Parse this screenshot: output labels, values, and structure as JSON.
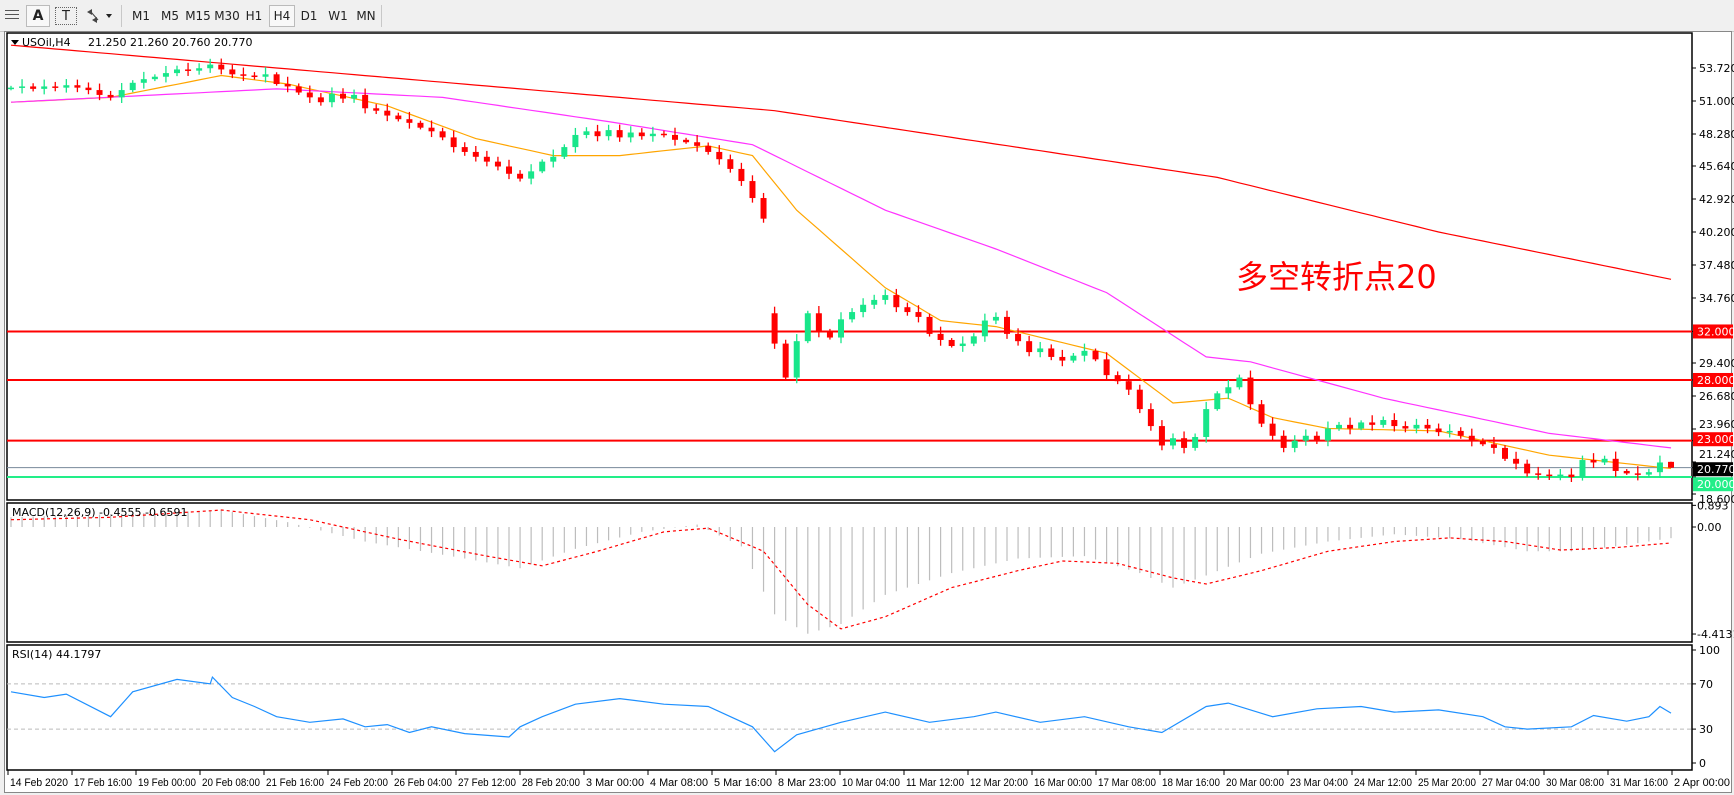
{
  "toolbar": {
    "buttons": [
      "A",
      "T"
    ],
    "timeframes": [
      "M1",
      "M5",
      "M15",
      "M30",
      "H1",
      "H4",
      "D1",
      "W1",
      "MN"
    ],
    "active_timeframe": "H4"
  },
  "header": {
    "symbol": "USOil,H4",
    "ohlc": "21.250 21.260 20.760 20.770"
  },
  "annotation": "多空转折点20",
  "colors": {
    "bull": "#18e68a",
    "bear": "#ff0000",
    "ma_fast": "#ffa500",
    "ma_mid": "#ff33ff",
    "ma_slow": "#ff0000",
    "level_red": "#ff0000",
    "level_green": "#22ee88",
    "rsi": "#1e90ff",
    "macd_hist": "#bdbdbd",
    "macd_signal": "#ff0000"
  },
  "chart_data": [
    {
      "type": "candlestick",
      "title": "USOil,H4",
      "ylim": [
        18.0,
        56.5
      ],
      "price_ticks": [
        "53.720",
        "51.000",
        "48.280",
        "45.640",
        "42.920",
        "40.200",
        "37.480",
        "34.760",
        "29.400",
        "26.680",
        "23.960",
        "21.240",
        "18.600"
      ],
      "closes": [
        52.1,
        52.2,
        52.0,
        52.2,
        52.1,
        52.3,
        52.1,
        51.9,
        51.5,
        51.3,
        51.9,
        52.5,
        52.8,
        53.0,
        53.3,
        53.6,
        53.5,
        53.7,
        54.0,
        53.6,
        53.2,
        53.1,
        53.0,
        53.2,
        52.4,
        52.2,
        51.7,
        51.3,
        50.9,
        51.6,
        51.2,
        51.5,
        50.4,
        50.2,
        49.8,
        49.5,
        49.2,
        48.8,
        48.5,
        48.0,
        47.2,
        46.8,
        46.4,
        46.0,
        45.6,
        45.0,
        44.6,
        45.2,
        46.0,
        46.4,
        47.2,
        48.2,
        48.5,
        48.1,
        48.6,
        48.0,
        48.4,
        48.1,
        48.3,
        48.2,
        47.8,
        47.6,
        47.3,
        46.8,
        46.2,
        45.4,
        44.4,
        43.0,
        41.3,
        31.0,
        28.2,
        31.2,
        33.5,
        32.0,
        31.5,
        33.0,
        33.6,
        34.2,
        34.6,
        35.0,
        34.0,
        33.6,
        33.2,
        31.8,
        31.3,
        30.8,
        31.0,
        31.6,
        32.9,
        33.2,
        31.8,
        31.2,
        30.3,
        30.6,
        29.9,
        29.6,
        30.0,
        30.4,
        29.7,
        28.4,
        27.9,
        27.2,
        25.6,
        24.2,
        22.6,
        23.2,
        22.4,
        23.3,
        25.6,
        26.9,
        27.4,
        28.2,
        26.0,
        24.4,
        23.4,
        22.4,
        23.0,
        23.4,
        23.0,
        24.0,
        24.3,
        24.0,
        24.5,
        24.3,
        24.7,
        24.2,
        24.0,
        24.3,
        24.0,
        23.7,
        23.8,
        23.4,
        23.0,
        22.7,
        22.4,
        21.5,
        21.1,
        20.3,
        20.2,
        20.1,
        20.2,
        20.0,
        21.4,
        21.2,
        21.5,
        20.5,
        20.3,
        20.2,
        20.4,
        21.2,
        20.77
      ],
      "gaps": [
        {
          "bar": 69,
          "open": 33.5
        }
      ],
      "last_bar": {
        "open": 21.25,
        "high": 21.26,
        "low": 20.76,
        "close": 20.77
      },
      "moving_averages": [
        {
          "role": "fast",
          "points": [
            [
              0,
              50.9
            ],
            [
              9,
              51.3
            ],
            [
              19,
              53.1
            ],
            [
              25,
              52.4
            ],
            [
              34,
              50.6
            ],
            [
              42,
              47.9
            ],
            [
              49,
              46.5
            ],
            [
              55,
              46.5
            ],
            [
              63,
              47.3
            ],
            [
              67,
              46.5
            ],
            [
              71,
              42.0
            ],
            [
              79,
              35.6
            ],
            [
              84,
              32.9
            ],
            [
              89,
              32.4
            ],
            [
              99,
              30.2
            ],
            [
              105,
              26.1
            ],
            [
              110,
              26.5
            ],
            [
              114,
              24.9
            ],
            [
              119,
              24.0
            ],
            [
              129,
              23.8
            ],
            [
              139,
              21.8
            ],
            [
              150,
              20.7
            ]
          ]
        },
        {
          "role": "mid",
          "points": [
            [
              0,
              50.9
            ],
            [
              24,
              52.0
            ],
            [
              39,
              51.3
            ],
            [
              54,
              49.3
            ],
            [
              67,
              47.4
            ],
            [
              79,
              42.0
            ],
            [
              89,
              38.8
            ],
            [
              99,
              35.2
            ],
            [
              108,
              29.9
            ],
            [
              112,
              29.5
            ],
            [
              124,
              26.5
            ],
            [
              139,
              23.6
            ],
            [
              150,
              22.4
            ]
          ]
        },
        {
          "role": "slow",
          "points": [
            [
              0,
              55.6
            ],
            [
              69,
              50.2
            ],
            [
              109,
              44.7
            ],
            [
              129,
              40.2
            ],
            [
              150,
              36.3
            ]
          ]
        }
      ],
      "levels": [
        {
          "price": 32.0,
          "label": "32.000",
          "color": "red"
        },
        {
          "price": 28.0,
          "label": "28.000",
          "color": "red"
        },
        {
          "price": 23.0,
          "label": "23.000",
          "color": "red"
        },
        {
          "price": 20.0,
          "label": "20.000",
          "color": "green"
        }
      ],
      "current_price_label": "20.770",
      "x_tick_labels": [
        "14 Feb 2020",
        "17 Feb 16:00",
        "19 Feb 00:00",
        "20 Feb 08:00",
        "21 Feb 16:00",
        "24 Feb 20:00",
        "26 Feb 04:00",
        "27 Feb 12:00",
        "28 Feb 20:00",
        "3 Mar 00:00",
        "4 Mar 08:00",
        "5 Mar 16:00",
        "8 Mar 23:00",
        "10 Mar 04:00",
        "11 Mar 12:00",
        "12 Mar 20:00",
        "16 Mar 00:00",
        "17 Mar 08:00",
        "18 Mar 16:00",
        "20 Mar 00:00",
        "23 Mar 04:00",
        "24 Mar 12:00",
        "25 Mar 20:00",
        "27 Mar 04:00",
        "30 Mar 08:00",
        "31 Mar 16:00",
        "2 Apr 00:00"
      ]
    },
    {
      "type": "bar",
      "title": "MACD(12,26,9) -0.4555 -0.6591",
      "ylim": [
        -4.4131,
        0.893
      ],
      "tick_labels": [
        "0.893",
        "0.00",
        "-4.4131"
      ],
      "main_points": [
        [
          0,
          0.4
        ],
        [
          14,
          0.6
        ],
        [
          19,
          0.7
        ],
        [
          25,
          0.2
        ],
        [
          32,
          -0.6
        ],
        [
          41,
          -1.3
        ],
        [
          46,
          -1.7
        ],
        [
          51,
          -0.9
        ],
        [
          57,
          -0.2
        ],
        [
          62,
          0.1
        ],
        [
          66,
          -0.8
        ],
        [
          69,
          -3.6
        ],
        [
          72,
          -4.4
        ],
        [
          75,
          -4.0
        ],
        [
          79,
          -2.8
        ],
        [
          85,
          -1.9
        ],
        [
          91,
          -1.3
        ],
        [
          97,
          -1.2
        ],
        [
          102,
          -1.9
        ],
        [
          105,
          -2.5
        ],
        [
          108,
          -2.0
        ],
        [
          113,
          -1.1
        ],
        [
          119,
          -0.6
        ],
        [
          125,
          -0.3
        ],
        [
          131,
          -0.5
        ],
        [
          137,
          -1.0
        ],
        [
          141,
          -1.0
        ],
        [
          145,
          -0.8
        ],
        [
          150,
          -0.46
        ]
      ],
      "signal_points": [
        [
          0,
          0.3
        ],
        [
          9,
          0.4
        ],
        [
          19,
          0.7
        ],
        [
          27,
          0.3
        ],
        [
          35,
          -0.5
        ],
        [
          43,
          -1.2
        ],
        [
          48,
          -1.6
        ],
        [
          53,
          -1.0
        ],
        [
          59,
          -0.2
        ],
        [
          63,
          -0.05
        ],
        [
          68,
          -1.0
        ],
        [
          72,
          -3.2
        ],
        [
          75,
          -4.2
        ],
        [
          79,
          -3.7
        ],
        [
          85,
          -2.5
        ],
        [
          91,
          -1.8
        ],
        [
          95,
          -1.4
        ],
        [
          100,
          -1.5
        ],
        [
          105,
          -2.1
        ],
        [
          108,
          -2.35
        ],
        [
          113,
          -1.8
        ],
        [
          119,
          -1.0
        ],
        [
          125,
          -0.6
        ],
        [
          130,
          -0.45
        ],
        [
          135,
          -0.6
        ],
        [
          140,
          -0.95
        ],
        [
          145,
          -0.85
        ],
        [
          150,
          -0.66
        ]
      ]
    },
    {
      "type": "line",
      "title": "RSI(14) 44.1797",
      "ylim": [
        0,
        100
      ],
      "tick_labels": [
        "100",
        "70",
        "30",
        "0"
      ],
      "points": [
        [
          0,
          63
        ],
        [
          3,
          58
        ],
        [
          5,
          61
        ],
        [
          9,
          41
        ],
        [
          11,
          63
        ],
        [
          15,
          74
        ],
        [
          18,
          70
        ],
        [
          18.2,
          76
        ],
        [
          20,
          58
        ],
        [
          22,
          50
        ],
        [
          24,
          41
        ],
        [
          27,
          36
        ],
        [
          30,
          39
        ],
        [
          32,
          32
        ],
        [
          34,
          34
        ],
        [
          36,
          27
        ],
        [
          38,
          32
        ],
        [
          41,
          26
        ],
        [
          45,
          23
        ],
        [
          46,
          32
        ],
        [
          48,
          41
        ],
        [
          51,
          52
        ],
        [
          55,
          57
        ],
        [
          59,
          52
        ],
        [
          63,
          50
        ],
        [
          67,
          32
        ],
        [
          69,
          10
        ],
        [
          71,
          25
        ],
        [
          75,
          36
        ],
        [
          79,
          45
        ],
        [
          83,
          36
        ],
        [
          87,
          41
        ],
        [
          89,
          45
        ],
        [
          93,
          36
        ],
        [
          97,
          41
        ],
        [
          101,
          32
        ],
        [
          104,
          27
        ],
        [
          108,
          50
        ],
        [
          110,
          53
        ],
        [
          114,
          41
        ],
        [
          118,
          48
        ],
        [
          122,
          50
        ],
        [
          125,
          45
        ],
        [
          129,
          47
        ],
        [
          133,
          41
        ],
        [
          135,
          32
        ],
        [
          137,
          30
        ],
        [
          141,
          32
        ],
        [
          143,
          42
        ],
        [
          146,
          37
        ],
        [
          148,
          41
        ],
        [
          149,
          50
        ],
        [
          150,
          44.18
        ]
      ]
    }
  ]
}
